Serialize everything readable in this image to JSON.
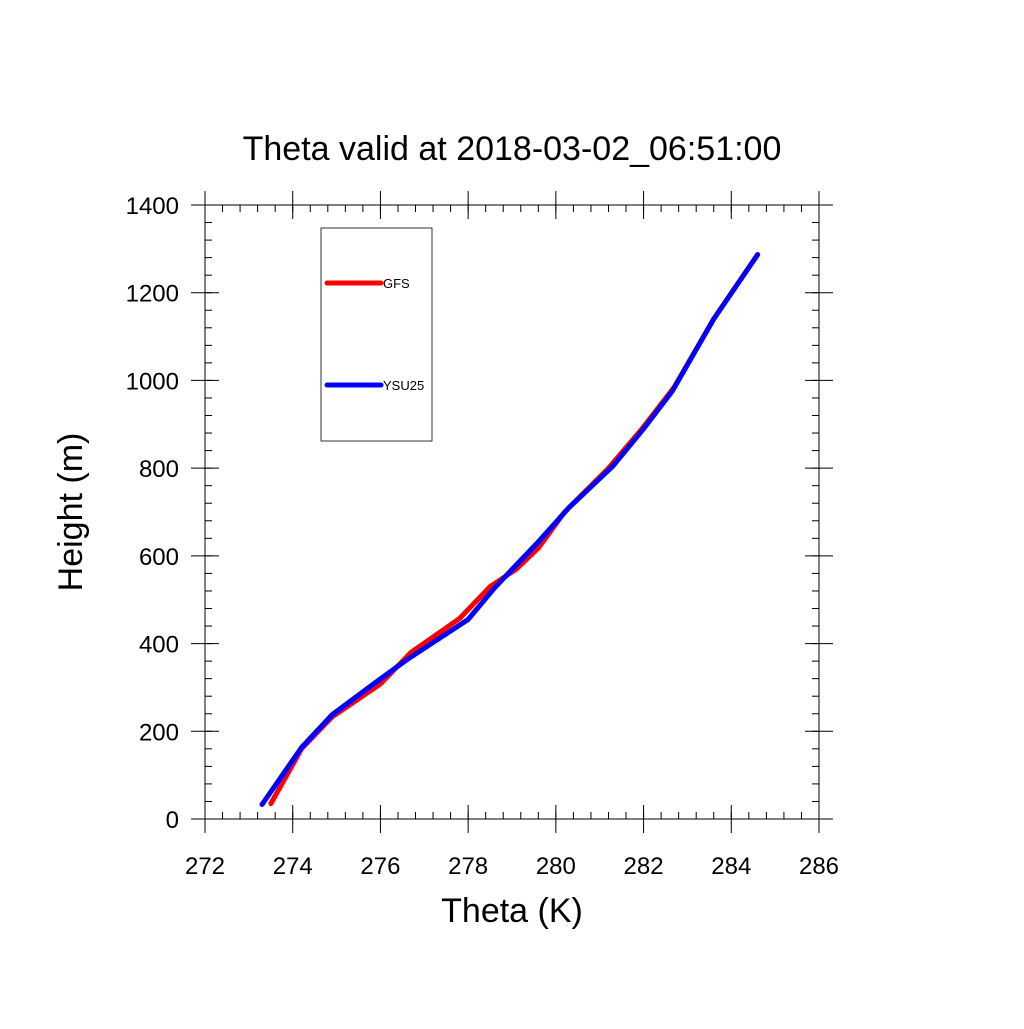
{
  "chart_data": {
    "type": "line",
    "title": "Theta valid at 2018-03-02_06:51:00",
    "xlabel": "Theta (K)",
    "ylabel": "Height (m)",
    "xlim": [
      272,
      286
    ],
    "ylim": [
      0,
      1400
    ],
    "x_ticks": [
      272,
      274,
      276,
      278,
      280,
      282,
      284,
      286
    ],
    "y_ticks": [
      0,
      200,
      400,
      600,
      800,
      1000,
      1200,
      1400
    ],
    "x_minor_step": 0.4,
    "y_minor_step": 40,
    "grid": false,
    "legend_position": "top-left",
    "series": [
      {
        "name": "GFS",
        "color": "#ff0000",
        "points": [
          {
            "x": 273.5,
            "y": 35
          },
          {
            "x": 274.2,
            "y": 160
          },
          {
            "x": 274.9,
            "y": 233
          },
          {
            "x": 276.0,
            "y": 308
          },
          {
            "x": 276.7,
            "y": 380
          },
          {
            "x": 277.8,
            "y": 457
          },
          {
            "x": 278.5,
            "y": 530
          },
          {
            "x": 279.1,
            "y": 570
          },
          {
            "x": 279.6,
            "y": 618
          },
          {
            "x": 280.2,
            "y": 700
          },
          {
            "x": 281.2,
            "y": 800
          },
          {
            "x": 281.95,
            "y": 888
          },
          {
            "x": 282.7,
            "y": 985
          },
          {
            "x": 283.6,
            "y": 1140
          },
          {
            "x": 284.6,
            "y": 1287
          }
        ]
      },
      {
        "name": "YSU25",
        "color": "#0000ff",
        "points": [
          {
            "x": 273.3,
            "y": 33
          },
          {
            "x": 274.2,
            "y": 163
          },
          {
            "x": 274.9,
            "y": 238
          },
          {
            "x": 275.8,
            "y": 305
          },
          {
            "x": 276.6,
            "y": 363
          },
          {
            "x": 278.0,
            "y": 455
          },
          {
            "x": 278.6,
            "y": 527
          },
          {
            "x": 279.6,
            "y": 632
          },
          {
            "x": 280.3,
            "y": 710
          },
          {
            "x": 281.3,
            "y": 805
          },
          {
            "x": 282.0,
            "y": 890
          },
          {
            "x": 282.65,
            "y": 975
          },
          {
            "x": 283.6,
            "y": 1140
          },
          {
            "x": 284.6,
            "y": 1287
          }
        ]
      }
    ]
  }
}
